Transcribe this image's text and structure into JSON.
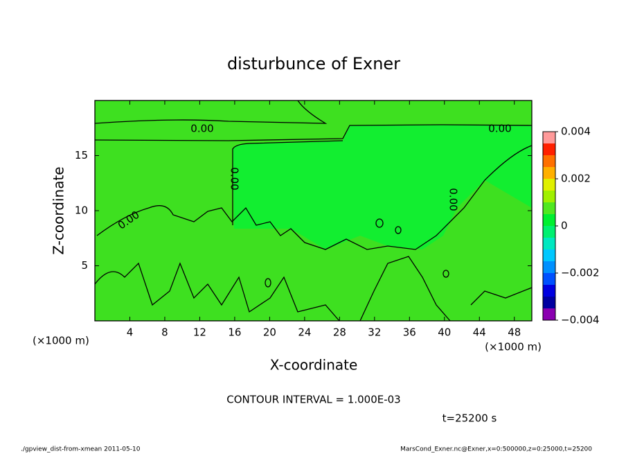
{
  "chart_data": {
    "type": "contour",
    "title": "disturbunce of Exner",
    "xlabel": "X-coordinate",
    "ylabel": "Z-coordinate",
    "x_unit_left": "(×1000 m)",
    "x_unit_right": "(×1000 m)",
    "xlim": [
      0,
      50
    ],
    "xticks": [
      4,
      8,
      12,
      16,
      20,
      24,
      28,
      32,
      36,
      40,
      44,
      48
    ],
    "ylim": [
      0,
      20
    ],
    "yticks": [
      5,
      10,
      15
    ],
    "contour_labels": [
      "0.00",
      "0.00",
      "0.00",
      "0.00",
      "0.00"
    ],
    "colorbar": {
      "lim": [
        -0.004,
        0.004
      ],
      "ticks": [
        {
          "value": -0.004,
          "label": "−0.004"
        },
        {
          "value": -0.002,
          "label": "−0.002"
        },
        0,
        0.002,
        0.004
      ],
      "colors": [
        "#8a00b0",
        "#0000a0",
        "#0000e0",
        "#0050ff",
        "#0090ff",
        "#00c8ff",
        "#00e8c0",
        "#00f070",
        "#00f030",
        "#50e820",
        "#a0f000",
        "#e0f000",
        "#ffb000",
        "#ff7000",
        "#ff2000",
        "#ff9a9a"
      ]
    },
    "contour_interval": "CONTOUR INTERVAL = 1.000E-03",
    "time_label": "t=25200 s",
    "footer_left": "./gpview_dist-from-xmean  2011-05-10",
    "footer_right": "MarsCond_Exner.nc@Exner,x=0:500000,z=0:25000,t=25200"
  }
}
